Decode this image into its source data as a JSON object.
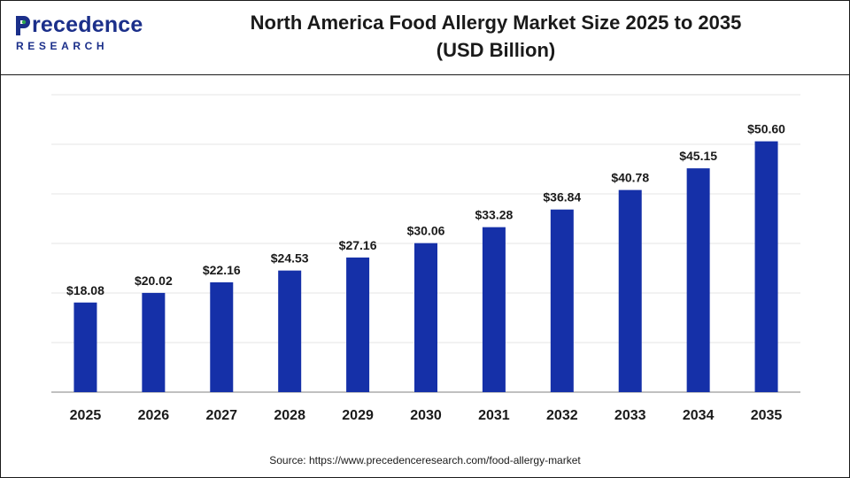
{
  "header": {
    "logo_main": "recedence",
    "logo_sub": "RESEARCH",
    "title_line1": "North America Food Allergy Market Size 2025 to 2035",
    "title_line2": "(USD Billion)"
  },
  "colors": {
    "bar": "#1530a8",
    "brand": "#1b2f8a",
    "brand_accent": "#2fa84f",
    "grid": "#e6e6e6",
    "axis": "#9a9a9a",
    "text": "#1a1a1a"
  },
  "chart_data": {
    "type": "bar",
    "title": "North America Food Allergy Market Size 2025 to 2035 (USD Billion)",
    "xlabel": "",
    "ylabel": "",
    "categories": [
      "2025",
      "2026",
      "2027",
      "2028",
      "2029",
      "2030",
      "2031",
      "2032",
      "2033",
      "2034",
      "2035"
    ],
    "values": [
      18.08,
      20.02,
      22.16,
      24.53,
      27.16,
      30.06,
      33.28,
      36.84,
      40.78,
      45.15,
      50.6
    ],
    "value_labels": [
      "$18.08",
      "$20.02",
      "$22.16",
      "$24.53",
      "$27.16",
      "$30.06",
      "$33.28",
      "$36.84",
      "$40.78",
      "$45.15",
      "$50.60"
    ],
    "ylim": [
      0,
      60
    ],
    "grid": true,
    "legend": "none"
  },
  "source": "Source: https://www.precedenceresearch.com/food-allergy-market"
}
